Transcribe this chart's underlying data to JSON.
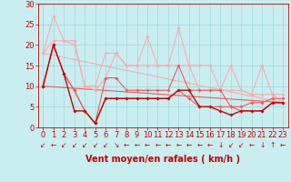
{
  "xlabel": "Vent moyen/en rafales ( km/h )",
  "xlim": [
    -0.5,
    23.5
  ],
  "ylim": [
    0,
    30
  ],
  "xticks": [
    0,
    1,
    2,
    3,
    4,
    5,
    6,
    7,
    8,
    9,
    10,
    11,
    12,
    13,
    14,
    15,
    16,
    17,
    18,
    19,
    20,
    21,
    22,
    23
  ],
  "yticks": [
    0,
    5,
    10,
    15,
    20,
    25,
    30
  ],
  "bg_color": "#c8eef0",
  "grid_color": "#a0d8dc",
  "c_light": "#ffaaaa",
  "c_mid": "#ff5555",
  "c_dark": "#cc0000",
  "trend_hi_start": 18,
  "trend_hi_end": 6,
  "trend_lo_start": 10,
  "trend_lo_end": 6,
  "jagged_light_hi": [
    18,
    27,
    21,
    21,
    10,
    10,
    18,
    18,
    15,
    15,
    22,
    15,
    15,
    24,
    15,
    15,
    15,
    9,
    15,
    9,
    8,
    15,
    8,
    8
  ],
  "jagged_light_lo": [
    18,
    21,
    21,
    20,
    10,
    9,
    12,
    18,
    15,
    15,
    15,
    15,
    15,
    15,
    15,
    9,
    9,
    9,
    9,
    9,
    8,
    8,
    8,
    6
  ],
  "jagged_mid_hi": [
    10,
    20,
    13,
    9,
    4,
    1,
    12,
    12,
    9,
    9,
    9,
    9,
    9,
    15,
    9,
    9,
    9,
    9,
    5,
    5,
    6,
    6,
    7,
    7
  ],
  "jagged_mid_lo": [
    10,
    20,
    13,
    9,
    4,
    1,
    7,
    7,
    7,
    7,
    7,
    7,
    7,
    9,
    7,
    5,
    5,
    5,
    5,
    4,
    4,
    4,
    6,
    6
  ],
  "jagged_dark": [
    10,
    20,
    13,
    4,
    4,
    1,
    7,
    7,
    7,
    7,
    7,
    7,
    7,
    9,
    9,
    5,
    5,
    4,
    3,
    4,
    4,
    4,
    6,
    6
  ],
  "wind_dirs": [
    "↙",
    "←",
    "↙",
    "↙",
    "↙",
    "↙",
    "↙",
    "↘",
    "←",
    "←",
    "←",
    "←",
    "←",
    "←",
    "←",
    "←",
    "←",
    "↓",
    "↙",
    "↙",
    "←",
    "↓",
    "↑",
    "←"
  ],
  "label_fontsize": 7,
  "tick_fontsize": 6
}
